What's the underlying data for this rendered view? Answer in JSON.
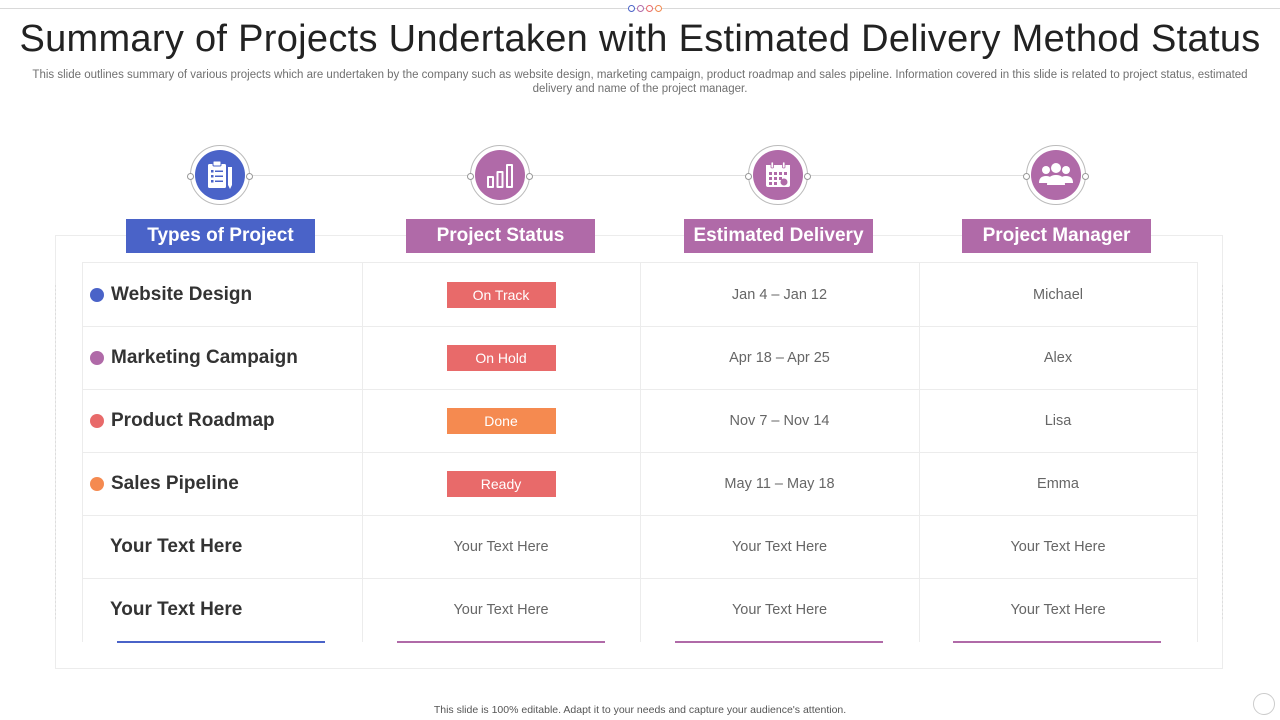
{
  "slide": {
    "title": "Summary of Projects Undertaken with Estimated Delivery Method Status",
    "subtitle": "This slide outlines summary of various projects which are undertaken by the company such as website design, marketing campaign, product roadmap and sales pipeline. Information covered in this slide is related to project status, estimated delivery and name of the project manager.",
    "footer": "This slide is 100% editable.  Adapt it to your needs and capture your audience's attention."
  },
  "columns": [
    {
      "label": "Types of Project",
      "icon": "clipboard-icon",
      "color": "#4a63c8"
    },
    {
      "label": "Project Status",
      "icon": "bar-chart-icon",
      "color": "#b06aa8"
    },
    {
      "label": "Estimated Delivery",
      "icon": "calendar-icon",
      "color": "#b06aa8"
    },
    {
      "label": "Project Manager",
      "icon": "team-icon",
      "color": "#b06aa8"
    }
  ],
  "rows": [
    {
      "project": "Website Design",
      "dot_color": "#4a63c8",
      "status": "On Track",
      "status_color": "#e86a6a",
      "delivery": "Jan 4 – Jan 12",
      "manager": "Michael"
    },
    {
      "project": "Marketing Campaign",
      "dot_color": "#b06aa8",
      "status": "On Hold",
      "status_color": "#e86a6a",
      "delivery": "Apr 18 – Apr 25",
      "manager": "Alex"
    },
    {
      "project": "Product Roadmap",
      "dot_color": "#e86a6a",
      "status": "Done",
      "status_color": "#f58a50",
      "delivery": "Nov 7 – Nov 14",
      "manager": "Lisa"
    },
    {
      "project": "Sales Pipeline",
      "dot_color": "#f58a50",
      "status": "Ready",
      "status_color": "#e86a6a",
      "delivery": "May 11 – May 18",
      "manager": "Emma"
    },
    {
      "project": "Your Text Here",
      "status": "Your Text Here",
      "delivery": "Your Text Here",
      "manager": "Your Text Here"
    },
    {
      "project": "Your Text Here",
      "status": "Your Text Here",
      "delivery": "Your Text Here",
      "manager": "Your Text Here"
    }
  ]
}
